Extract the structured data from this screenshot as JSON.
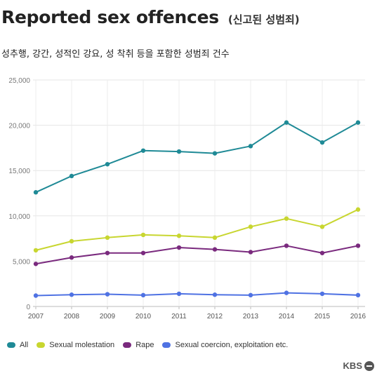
{
  "header": {
    "title": "Reported sex offences",
    "title_ko": "(신고된 성범죄)",
    "subtitle": "성추행, 강간, 성적인 강요, 성 착취 등을 포함한 성범죄 건수"
  },
  "brand": {
    "label": "KBS"
  },
  "chart_data": {
    "type": "line",
    "x": [
      2007,
      2008,
      2009,
      2010,
      2011,
      2012,
      2013,
      2014,
      2015,
      2016
    ],
    "ylim": [
      0,
      25000
    ],
    "yticks": [
      0,
      5000,
      10000,
      15000,
      20000,
      25000
    ],
    "ytick_labels": [
      "0",
      "5,000",
      "10,000",
      "15,000",
      "20,000",
      "25,000"
    ],
    "grid": true,
    "legend_position": "bottom-left",
    "series": [
      {
        "name": "All",
        "color": "#1f8a96",
        "values": [
          12600,
          14400,
          15700,
          17200,
          17100,
          16900,
          17700,
          20300,
          18100,
          20300
        ]
      },
      {
        "name": "Sexual molestation",
        "color": "#c8d630",
        "values": [
          6200,
          7200,
          7600,
          7900,
          7800,
          7600,
          8800,
          9700,
          8800,
          10700
        ]
      },
      {
        "name": "Rape",
        "color": "#7a2a7e",
        "values": [
          4700,
          5400,
          5900,
          5900,
          6500,
          6300,
          6000,
          6700,
          5900,
          6700
        ]
      },
      {
        "name": "Sexual coercion, exploitation etc.",
        "color": "#4f72e3",
        "values": [
          1200,
          1300,
          1350,
          1250,
          1400,
          1300,
          1250,
          1500,
          1400,
          1250
        ]
      }
    ]
  }
}
